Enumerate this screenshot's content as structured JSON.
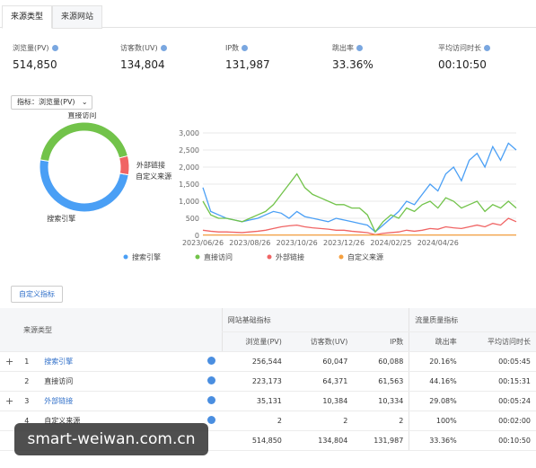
{
  "tabs": [
    "来源类型",
    "来源网站"
  ],
  "metrics": [
    {
      "label": "浏览量(PV)",
      "value": "514,850"
    },
    {
      "label": "访客数(UV)",
      "value": "134,804"
    },
    {
      "label": "IP数",
      "value": "131,987"
    },
    {
      "label": "跳出率",
      "value": "33.36%"
    },
    {
      "label": "平均访问时长",
      "value": "00:10:50"
    }
  ],
  "selector": "指标：浏览量(PV)",
  "chart_data": [
    {
      "type": "pie",
      "categories": [
        "搜索引擎",
        "直接访问",
        "外部链接",
        "自定义来源"
      ],
      "values": [
        256544,
        223173,
        35131,
        2
      ],
      "colors": [
        "#4a9ff5",
        "#72c34a",
        "#f06464",
        "#f5a040"
      ]
    },
    {
      "type": "line",
      "categories": [
        "2023/06/26",
        null,
        null,
        null,
        null,
        null,
        "2023/08/26",
        null,
        null,
        null,
        null,
        null,
        "2023/10/26",
        null,
        null,
        null,
        null,
        null,
        "2023/12/26",
        null,
        null,
        null,
        null,
        null,
        "2024/02/25",
        null,
        null,
        null,
        null,
        null,
        "2024/04/26",
        null,
        null,
        null,
        null,
        null,
        null,
        null,
        null,
        null,
        null
      ],
      "ylim": [
        0,
        3000
      ],
      "yticks": [
        0,
        500,
        {
          "value": 1000,
          "label": "1,000"
        },
        {
          "value": 1500,
          "label": "1,500"
        },
        {
          "value": 2000,
          "label": "2,000"
        },
        {
          "value": 2500,
          "label": "2,500"
        },
        {
          "value": 3000,
          "label": "3,000"
        }
      ],
      "series": [
        {
          "name": "搜索引擎",
          "color": "#4a9ff5",
          "values": [
            1400,
            700,
            600,
            500,
            450,
            400,
            450,
            500,
            600,
            700,
            650,
            500,
            700,
            550,
            500,
            450,
            400,
            500,
            450,
            400,
            350,
            300,
            100,
            300,
            500,
            700,
            1000,
            900,
            1200,
            1500,
            1300,
            1800,
            2000,
            1600,
            2200,
            2400,
            2000,
            2600,
            2200,
            2700,
            2500
          ]
        },
        {
          "name": "直接访问",
          "color": "#72c34a",
          "values": [
            1000,
            600,
            500,
            500,
            450,
            400,
            500,
            600,
            700,
            900,
            1200,
            1500,
            1800,
            1400,
            1200,
            1100,
            1000,
            900,
            900,
            800,
            800,
            600,
            100,
            400,
            600,
            500,
            800,
            700,
            900,
            1000,
            800,
            1100,
            1000,
            800,
            900,
            1000,
            700,
            900,
            800,
            1000,
            800
          ]
        },
        {
          "name": "外部链接",
          "color": "#f06464",
          "values": [
            150,
            120,
            100,
            100,
            90,
            80,
            100,
            120,
            150,
            200,
            250,
            280,
            300,
            250,
            220,
            200,
            180,
            150,
            150,
            120,
            100,
            80,
            20,
            60,
            80,
            100,
            150,
            120,
            150,
            200,
            180,
            250,
            220,
            200,
            250,
            300,
            250,
            350,
            300,
            500,
            400
          ]
        },
        {
          "name": "自定义来源",
          "color": "#f5a040",
          "values": [
            10,
            10,
            10,
            10,
            10,
            10,
            10,
            10,
            10,
            10,
            10,
            10,
            10,
            10,
            10,
            10,
            10,
            10,
            10,
            10,
            10,
            10,
            10,
            10,
            10,
            10,
            10,
            10,
            10,
            10,
            10,
            10,
            10,
            10,
            10,
            10,
            10,
            10,
            10,
            10,
            10
          ]
        }
      ]
    }
  ],
  "custom_button": "自定义指标",
  "table": {
    "group_headers": [
      "来源类型",
      "网站基础指标",
      "流量质量指标"
    ],
    "columns": [
      "浏览量(PV)",
      "访客数(UV)",
      "IP数",
      "跳出率",
      "平均访问时长"
    ],
    "rows": [
      {
        "expandable": true,
        "cells": [
          "1",
          "搜索引擎",
          "256,544",
          "60,047",
          "60,088",
          "20.16%",
          "00:05:45"
        ]
      },
      {
        "expandable": false,
        "cells": [
          "2",
          "直接访问",
          "223,173",
          "64,371",
          "61,563",
          "44.16%",
          "00:15:31"
        ]
      },
      {
        "expandable": true,
        "cells": [
          "3",
          "外部链接",
          "35,131",
          "10,384",
          "10,334",
          "29.08%",
          "00:05:24"
        ]
      },
      {
        "expandable": false,
        "cells": [
          "4",
          "自定义来源",
          "2",
          "2",
          "2",
          "100%",
          "00:02:00"
        ]
      }
    ],
    "total": [
      "514,850",
      "134,804",
      "131,987",
      "33.36%",
      "00:10:50"
    ]
  },
  "watermark": "smart-weiwan.com.cn"
}
